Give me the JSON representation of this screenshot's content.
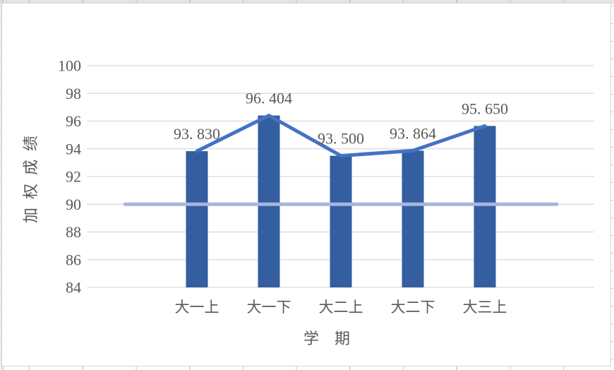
{
  "chart_data": {
    "type": "bar",
    "title": "",
    "categories": [
      "大一上",
      "大一下",
      "大二上",
      "大二下",
      "大三上"
    ],
    "series": [
      {
        "name": "加权成绩柱形",
        "type": "bar",
        "values": [
          93.83,
          96.404,
          93.5,
          93.864,
          95.65
        ]
      },
      {
        "name": "加权成绩折线",
        "type": "line",
        "values": [
          93.83,
          96.404,
          93.5,
          93.864,
          95.65
        ]
      },
      {
        "name": "基准线90",
        "type": "line",
        "values": [
          90,
          90,
          90,
          90,
          90
        ],
        "extends_beyond_bars": true
      }
    ],
    "data_labels": [
      "93. 830",
      "96. 404",
      "93. 500",
      "93. 864",
      "95. 650"
    ],
    "xlabel": "学　期",
    "ylabel": "加权成绩",
    "ylim": [
      84,
      100
    ],
    "ytick_step": 2,
    "yticks": [
      "100",
      "98",
      "96",
      "94",
      "92",
      "90",
      "88",
      "86",
      "84"
    ],
    "grid": true,
    "legend": "none",
    "colors": {
      "bar": "#335EA0",
      "line": "#4472C4",
      "baseline": "#A7B6DF",
      "gridline": "#D9D9D9",
      "text": "#595959"
    }
  }
}
